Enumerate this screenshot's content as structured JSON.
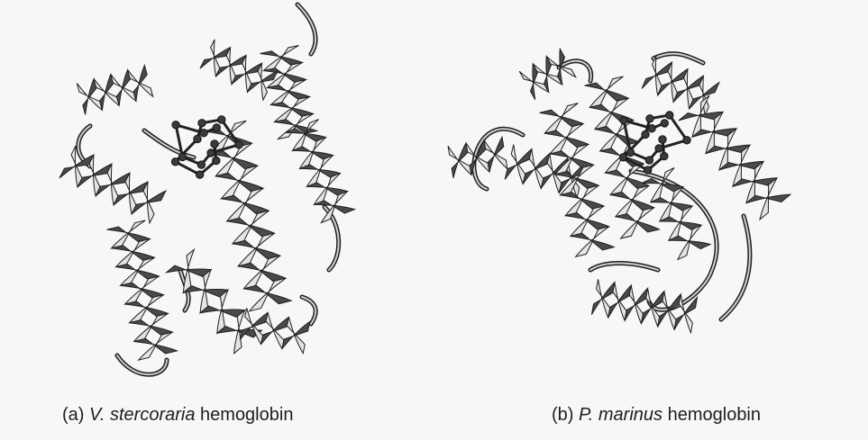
{
  "figure": {
    "panels": [
      {
        "prefix": "(a)",
        "species": "V. stercoraria",
        "suffix": "hemoglobin"
      },
      {
        "prefix": "(b)",
        "species": "P. marinus",
        "suffix": "hemoglobin"
      }
    ]
  },
  "colors": {
    "ribbon_dark": "#4a4a4a",
    "ribbon_light": "#e4e4e4",
    "outline": "#202020",
    "background": "#f7f7f7"
  }
}
